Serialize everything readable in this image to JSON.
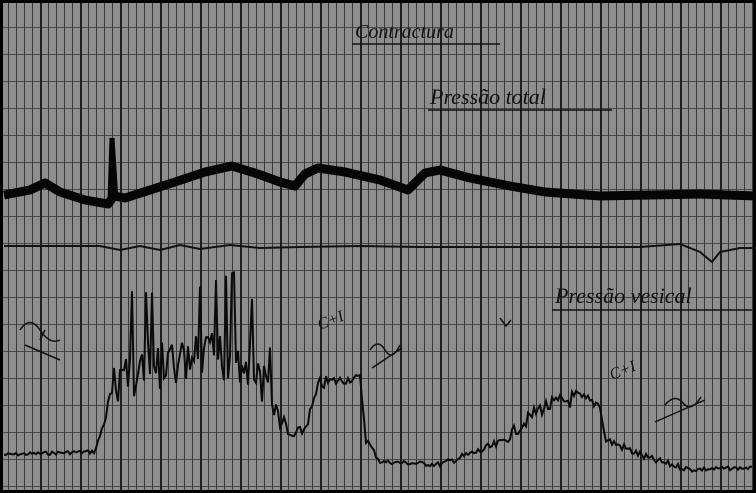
{
  "header": {
    "title": "Contractura"
  },
  "labels": {
    "total": "Pressão total",
    "vesical": "Pressão vesical",
    "mark1": "C+I",
    "mark2": "C+I"
  }
}
